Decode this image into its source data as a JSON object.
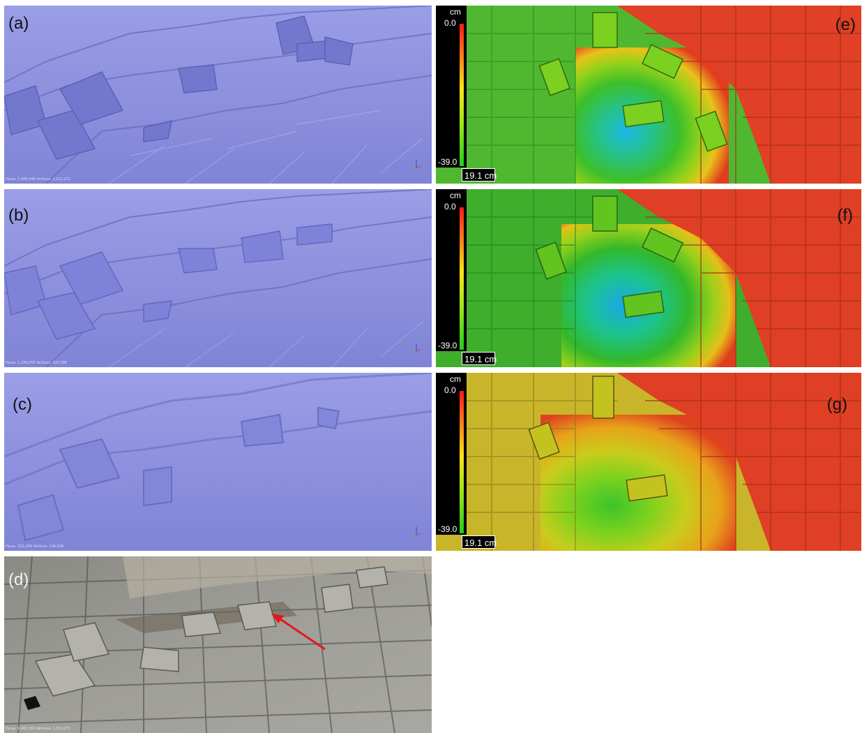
{
  "figure": {
    "panels_mesh": [
      {
        "label": "(a)",
        "caption_small": "Faces: 1,489,348 Vertices: 1,213,271"
      },
      {
        "label": "(b)",
        "caption_small": "Faces: 1,249,259 Vertices: 525,586"
      },
      {
        "label": "(c)",
        "caption_small": "Faces: 252,249 Vertices: 146,546"
      }
    ],
    "panel_photo": {
      "label": "(d)",
      "caption_small": "Faces: 9,463,365 Vertices: 1,310,273"
    },
    "panels_dem": [
      {
        "label": "(e)"
      },
      {
        "label": "(f)"
      },
      {
        "label": "(g)"
      }
    ],
    "legend": {
      "unit": "cm",
      "max": "0.0",
      "min": "-39.0"
    },
    "scale_bar": "19.1 cm",
    "colors": {
      "mesh": "#8a8fe0",
      "legend_top": "#ff1a1a",
      "legend_bottom": "#1fd01f",
      "arrow": "#e8161a"
    }
  }
}
